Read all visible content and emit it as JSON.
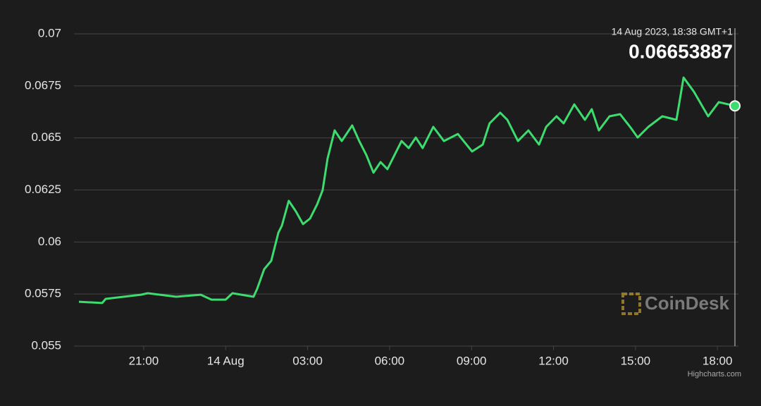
{
  "chart_data": {
    "type": "line",
    "x": [
      18.63,
      19.48,
      19.61,
      20.9,
      21.15,
      22.19,
      23.09,
      23.48,
      24.0,
      24.25,
      25.02,
      25.15,
      25.41,
      25.67,
      25.93,
      26.06,
      26.31,
      26.57,
      26.83,
      27.09,
      27.35,
      27.55,
      27.73,
      27.99,
      28.25,
      28.63,
      28.89,
      29.15,
      29.41,
      29.67,
      29.92,
      30.18,
      30.44,
      30.7,
      30.96,
      31.21,
      31.6,
      31.99,
      32.5,
      33.02,
      33.41,
      33.66,
      34.05,
      34.31,
      34.7,
      35.08,
      35.47,
      35.73,
      36.11,
      36.37,
      36.76,
      37.15,
      37.4,
      37.66,
      38.05,
      38.44,
      38.82,
      39.08,
      39.47,
      39.98,
      40.5,
      40.76,
      41.14,
      41.66,
      42.05,
      42.64
    ],
    "series": [
      {
        "color": "#3ddc6f",
        "values": [
          0.05713,
          0.05707,
          0.05727,
          0.05747,
          0.05754,
          0.05737,
          0.05747,
          0.05723,
          0.05723,
          0.05754,
          0.05737,
          0.05774,
          0.05869,
          0.0591,
          0.06045,
          0.06079,
          0.06198,
          0.06147,
          0.06086,
          0.06113,
          0.06181,
          0.06249,
          0.06401,
          0.06536,
          0.06485,
          0.0656,
          0.06485,
          0.06418,
          0.06333,
          0.06384,
          0.0635,
          0.06418,
          0.06485,
          0.06451,
          0.06502,
          0.06451,
          0.06553,
          0.06485,
          0.06519,
          0.06435,
          0.06468,
          0.0657,
          0.06621,
          0.06587,
          0.06485,
          0.06536,
          0.06468,
          0.06553,
          0.06604,
          0.0657,
          0.06661,
          0.06587,
          0.06638,
          0.06536,
          0.06604,
          0.06614,
          0.0655,
          0.06502,
          0.06553,
          0.06604,
          0.06587,
          0.0679,
          0.06722,
          0.06604,
          0.06672,
          0.06653887
        ]
      }
    ],
    "xlim": [
      18.63,
      42.64
    ],
    "xticks": [
      {
        "value": 21,
        "label": "21:00"
      },
      {
        "value": 24,
        "label": "14 Aug"
      },
      {
        "value": 27,
        "label": "03:00"
      },
      {
        "value": 30,
        "label": "06:00"
      },
      {
        "value": 33,
        "label": "09:00"
      },
      {
        "value": 36,
        "label": "12:00"
      },
      {
        "value": 39,
        "label": "15:00"
      },
      {
        "value": 42,
        "label": "18:00"
      }
    ],
    "ylim": [
      0.055,
      0.07
    ],
    "yticks": [
      0.055,
      0.0575,
      0.06,
      0.0625,
      0.065,
      0.0675,
      0.07
    ],
    "grid": true,
    "tooltip": "14 Aug 2023, 18:38 GMT+1",
    "watermark": "CoinDesk",
    "credits": "Highcharts.com"
  }
}
